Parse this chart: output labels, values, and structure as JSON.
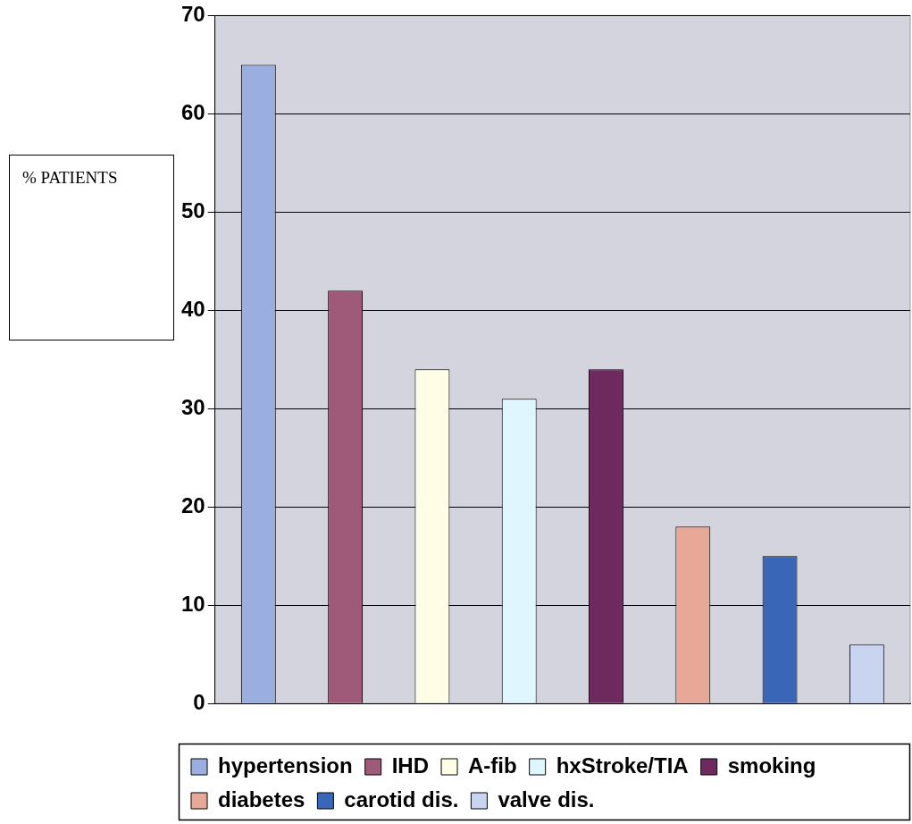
{
  "chart_data": {
    "type": "bar",
    "ylabel": "% PATIENTS",
    "categories": [
      null,
      null,
      null,
      null,
      null,
      null,
      null,
      null
    ],
    "series": [
      {
        "name": "hypertension",
        "color": "#9aaee0",
        "values": [
          65,
          null,
          null,
          null,
          null,
          null,
          null,
          null
        ]
      },
      {
        "name": "IHD",
        "color": "#9e5a78",
        "values": [
          null,
          42,
          null,
          null,
          null,
          null,
          null,
          null
        ]
      },
      {
        "name": "A-fib",
        "color": "#fffde6",
        "values": [
          null,
          null,
          34,
          null,
          null,
          null,
          null,
          null
        ]
      },
      {
        "name": "hxStroke/TIA",
        "color": "#e0f6ff",
        "values": [
          null,
          null,
          null,
          31,
          null,
          null,
          null,
          null
        ]
      },
      {
        "name": "smoking",
        "color": "#6e2a5e",
        "values": [
          null,
          null,
          null,
          null,
          34,
          null,
          null,
          null
        ]
      },
      {
        "name": "diabetes",
        "color": "#e8a898",
        "values": [
          null,
          null,
          null,
          null,
          null,
          18,
          null,
          null
        ]
      },
      {
        "name": "carotid dis.",
        "color": "#3a66b8",
        "values": [
          null,
          null,
          null,
          null,
          null,
          null,
          15,
          null
        ]
      },
      {
        "name": "valve dis.",
        "color": "#c8d4f0",
        "values": [
          null,
          null,
          null,
          null,
          null,
          null,
          null,
          6
        ]
      }
    ],
    "ylim": [
      0,
      70
    ],
    "yticks": [
      0,
      10,
      20,
      30,
      40,
      50,
      60,
      70
    ],
    "grid": "y",
    "legend": "bottom"
  }
}
